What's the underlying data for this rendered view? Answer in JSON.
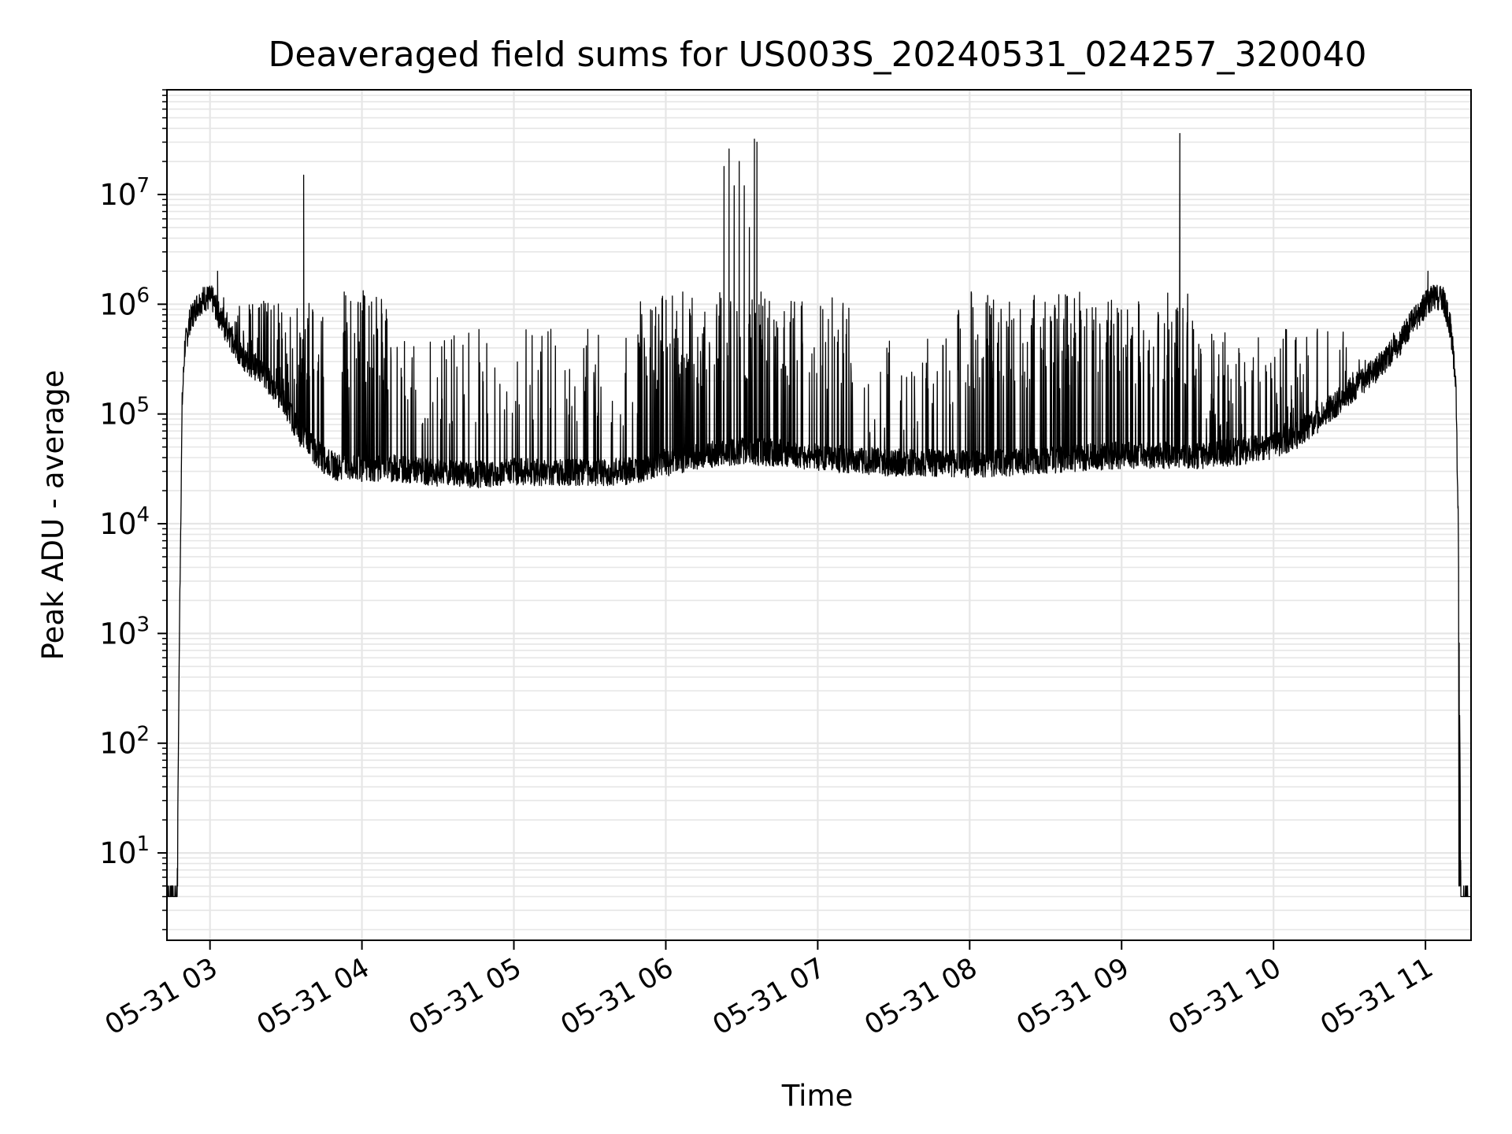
{
  "chart_data": {
    "type": "line",
    "title": "Deaveraged field sums for US003S_20240531_024257_320040",
    "xlabel": "Time",
    "ylabel": "Peak ADU - average",
    "y_scale": "log",
    "ylim": [
      1.6,
      90000000
    ],
    "xlim": [
      "2024-05-31 02:43",
      "2024-05-31 11:18"
    ],
    "grid": {
      "major": true,
      "minor": true,
      "color": "#e6e6e6"
    },
    "x_ticks": [
      {
        "value": "2024-05-31 03:00",
        "label": "05-31 03"
      },
      {
        "value": "2024-05-31 04:00",
        "label": "05-31 04"
      },
      {
        "value": "2024-05-31 05:00",
        "label": "05-31 05"
      },
      {
        "value": "2024-05-31 06:00",
        "label": "05-31 06"
      },
      {
        "value": "2024-05-31 07:00",
        "label": "05-31 07"
      },
      {
        "value": "2024-05-31 08:00",
        "label": "05-31 08"
      },
      {
        "value": "2024-05-31 09:00",
        "label": "05-31 09"
      },
      {
        "value": "2024-05-31 10:00",
        "label": "05-31 10"
      },
      {
        "value": "2024-05-31 11:00",
        "label": "05-31 11"
      }
    ],
    "y_ticks": [
      {
        "value": 10,
        "base": "10",
        "exp": "1"
      },
      {
        "value": 100,
        "base": "10",
        "exp": "2"
      },
      {
        "value": 1000,
        "base": "10",
        "exp": "3"
      },
      {
        "value": 10000,
        "base": "10",
        "exp": "4"
      },
      {
        "value": 100000,
        "base": "10",
        "exp": "5"
      },
      {
        "value": 1000000,
        "base": "10",
        "exp": "6"
      },
      {
        "value": 10000000,
        "base": "10",
        "exp": "7"
      }
    ],
    "line_color": "#000000",
    "series": [
      {
        "baseline": [
          [
            "2024-05-31 02:43",
            4
          ],
          [
            "2024-05-31 02:47",
            4
          ],
          [
            "2024-05-31 02:48",
            1500
          ],
          [
            "2024-05-31 02:49",
            120000
          ],
          [
            "2024-05-31 02:50",
            400000
          ],
          [
            "2024-05-31 02:52",
            700000
          ],
          [
            "2024-05-31 02:55",
            1000000
          ],
          [
            "2024-05-31 02:58",
            1150000
          ],
          [
            "2024-05-31 03:01",
            1100000
          ],
          [
            "2024-05-31 03:04",
            750000
          ],
          [
            "2024-05-31 03:07",
            550000
          ],
          [
            "2024-05-31 03:10",
            400000
          ],
          [
            "2024-05-31 03:15",
            300000
          ],
          [
            "2024-05-31 03:20",
            250000
          ],
          [
            "2024-05-31 03:25",
            180000
          ],
          [
            "2024-05-31 03:30",
            120000
          ],
          [
            "2024-05-31 03:35",
            70000
          ],
          [
            "2024-05-31 03:40",
            50000
          ],
          [
            "2024-05-31 03:45",
            38000
          ],
          [
            "2024-05-31 03:50",
            33000
          ],
          [
            "2024-05-31 04:00",
            32000
          ],
          [
            "2024-05-31 04:15",
            32000
          ],
          [
            "2024-05-31 04:30",
            29000
          ],
          [
            "2024-05-31 04:45",
            28000
          ],
          [
            "2024-05-31 05:00",
            30000
          ],
          [
            "2024-05-31 05:15",
            29000
          ],
          [
            "2024-05-31 05:30",
            29000
          ],
          [
            "2024-05-31 05:45",
            30000
          ],
          [
            "2024-05-31 06:00",
            36000
          ],
          [
            "2024-05-31 06:15",
            42000
          ],
          [
            "2024-05-31 06:30",
            46000
          ],
          [
            "2024-05-31 06:45",
            44000
          ],
          [
            "2024-05-31 07:00",
            40000
          ],
          [
            "2024-05-31 07:15",
            38000
          ],
          [
            "2024-05-31 07:30",
            36000
          ],
          [
            "2024-05-31 07:45",
            36000
          ],
          [
            "2024-05-31 08:00",
            35000
          ],
          [
            "2024-05-31 08:15",
            36000
          ],
          [
            "2024-05-31 08:30",
            38000
          ],
          [
            "2024-05-31 08:45",
            40000
          ],
          [
            "2024-05-31 09:00",
            42000
          ],
          [
            "2024-05-31 09:15",
            42000
          ],
          [
            "2024-05-31 09:30",
            42000
          ],
          [
            "2024-05-31 09:45",
            45000
          ],
          [
            "2024-05-31 10:00",
            52000
          ],
          [
            "2024-05-31 10:10",
            65000
          ],
          [
            "2024-05-31 10:20",
            100000
          ],
          [
            "2024-05-31 10:30",
            160000
          ],
          [
            "2024-05-31 10:40",
            250000
          ],
          [
            "2024-05-31 10:50",
            450000
          ],
          [
            "2024-05-31 10:55",
            700000
          ],
          [
            "2024-05-31 11:00",
            1000000
          ],
          [
            "2024-05-31 11:03",
            1150000
          ],
          [
            "2024-05-31 11:07",
            1100000
          ],
          [
            "2024-05-31 11:10",
            600000
          ],
          [
            "2024-05-31 11:12",
            200000
          ],
          [
            "2024-05-31 11:13",
            8000
          ],
          [
            "2024-05-31 11:14",
            4
          ],
          [
            "2024-05-31 11:18",
            4
          ]
        ],
        "bursts": [
          [
            "2024-05-31 03:05",
            "2024-05-31 03:45",
            1300000,
            0.55
          ],
          [
            "2024-05-31 03:52",
            "2024-05-31 04:10",
            1350000,
            0.75
          ],
          [
            "2024-05-31 04:10",
            "2024-05-31 05:50",
            600000,
            0.25
          ],
          [
            "2024-05-31 05:50",
            "2024-05-31 06:45",
            1300000,
            0.55
          ],
          [
            "2024-05-31 06:45",
            "2024-05-31 07:15",
            1300000,
            0.45
          ],
          [
            "2024-05-31 07:15",
            "2024-05-31 07:55",
            500000,
            0.25
          ],
          [
            "2024-05-31 07:55",
            "2024-05-31 09:30",
            1350000,
            0.6
          ],
          [
            "2024-05-31 09:30",
            "2024-05-31 10:55",
            600000,
            0.35
          ]
        ],
        "spikes": [
          [
            "2024-05-31 03:03",
            2000000
          ],
          [
            "2024-05-31 03:37",
            15000000
          ],
          [
            "2024-05-31 06:23",
            18000000
          ],
          [
            "2024-05-31 06:25",
            26000000
          ],
          [
            "2024-05-31 06:27",
            12000000
          ],
          [
            "2024-05-31 06:29",
            20000000
          ],
          [
            "2024-05-31 06:31",
            12000000
          ],
          [
            "2024-05-31 06:33",
            5000000
          ],
          [
            "2024-05-31 06:35",
            32000000
          ],
          [
            "2024-05-31 06:36",
            30000000
          ],
          [
            "2024-05-31 09:23",
            36000000
          ],
          [
            "2024-05-31 11:01",
            2000000
          ]
        ]
      }
    ]
  }
}
